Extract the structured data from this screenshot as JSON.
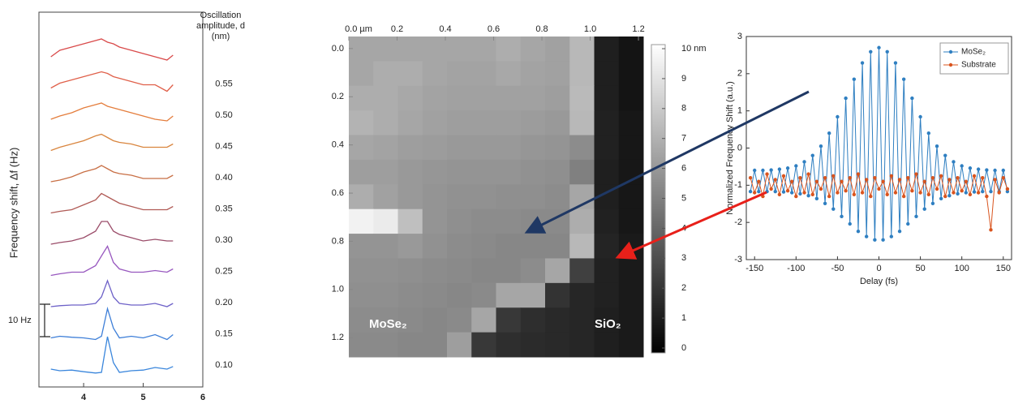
{
  "chart_data": [
    {
      "type": "ridgeline",
      "y_label": "Frequency shift, Δf (Hz)",
      "legend_title": [
        "Oscillation",
        "amplitude, d",
        "(nm)"
      ],
      "scale_bar": {
        "label": "10 Hz",
        "value": 10
      },
      "xlim": [
        3.25,
        6
      ],
      "xticks": [
        4,
        5,
        6
      ],
      "x": [
        3.45,
        3.6,
        3.8,
        4.0,
        4.2,
        4.3,
        4.4,
        4.5,
        4.6,
        4.8,
        5.0,
        5.2,
        5.4,
        5.5
      ],
      "series": [
        {
          "name": null,
          "color": "#d94a4a",
          "values": [
            0,
            2,
            3,
            4,
            5,
            5.5,
            4.5,
            4,
            3,
            2,
            1,
            0,
            -1,
            0.5
          ]
        },
        {
          "name": "0.55",
          "color": "#e0604a",
          "values": [
            0,
            1.5,
            2.5,
            3.5,
            4.5,
            5,
            4.5,
            3.5,
            3,
            2,
            1,
            1,
            -1,
            1
          ]
        },
        {
          "name": "0.50",
          "color": "#e47d3c",
          "values": [
            0,
            1,
            2,
            3.5,
            4.5,
            5,
            4,
            3.5,
            3,
            2,
            1,
            0,
            -0.5,
            1
          ]
        },
        {
          "name": "0.45",
          "color": "#d9853e",
          "values": [
            0,
            1,
            2,
            3,
            4.5,
            5,
            4,
            3,
            2.5,
            2,
            1,
            1,
            1,
            2
          ]
        },
        {
          "name": "0.40",
          "color": "#c86f45",
          "values": [
            0,
            0.5,
            1.5,
            3,
            4,
            5,
            4,
            3,
            2.5,
            2,
            1,
            1,
            1,
            2
          ]
        },
        {
          "name": "0.35",
          "color": "#b05a55",
          "values": [
            0,
            0.5,
            1,
            2.5,
            4,
            6,
            5,
            4,
            3,
            2,
            1,
            1,
            1,
            2
          ]
        },
        {
          "name": "0.30",
          "color": "#9b4d6a",
          "values": [
            0,
            0.5,
            1,
            2,
            4,
            7,
            7,
            4,
            3,
            2,
            1,
            1.5,
            1,
            1
          ]
        },
        {
          "name": "0.25",
          "color": "#9858bf",
          "values": [
            0,
            0.5,
            1,
            1,
            3,
            6,
            9,
            4,
            2,
            1,
            1,
            1.5,
            1,
            2
          ]
        },
        {
          "name": "0.20",
          "color": "#6e62c8",
          "values": [
            0,
            0.3,
            0.5,
            0.5,
            1,
            3,
            8,
            3,
            1,
            0.5,
            0.5,
            1,
            0,
            1
          ]
        },
        {
          "name": "0.15",
          "color": "#3e7fd8",
          "values": [
            0,
            0.5,
            0.2,
            0,
            -0.5,
            0.5,
            9,
            3,
            0,
            0.5,
            0,
            1,
            -0.5,
            1
          ]
        },
        {
          "name": "0.10",
          "color": "#3a86dc",
          "values": [
            0,
            -0.5,
            -0.3,
            -0.8,
            -1.2,
            -1,
            10,
            2,
            -1,
            -0.5,
            -0.3,
            0.5,
            0,
            0.8
          ]
        }
      ]
    },
    {
      "type": "heatmap",
      "xlim": [
        0,
        1.22
      ],
      "ylim": [
        -0.05,
        1.28
      ],
      "clim": [
        0,
        10
      ],
      "xticks": [
        {
          "value": 0,
          "label": "0.0 µm"
        },
        0.2,
        0.4,
        0.6,
        0.8,
        {
          "value": 1,
          "label": "1.0"
        },
        1.2
      ],
      "yticks": [
        {
          "value": 0,
          "label": "0.0"
        },
        0.2,
        0.4,
        0.6,
        0.8,
        {
          "value": 1,
          "label": "1.0"
        },
        1.2
      ],
      "cticks": [
        0,
        1,
        2,
        3,
        4,
        5,
        6,
        7,
        8,
        9,
        {
          "value": 10,
          "label": "10 nm"
        }
      ],
      "annotations": [
        "MoSe₂",
        "SiO₂"
      ],
      "z": [
        [
          6.5,
          6.5,
          6.5,
          6.5,
          6.5,
          6.5,
          6.8,
          6.5,
          6.3,
          7.2,
          1.2,
          0.8
        ],
        [
          6.5,
          6.8,
          6.8,
          6.5,
          6.4,
          6.4,
          6.6,
          6.4,
          6.3,
          7.2,
          1.2,
          0.8
        ],
        [
          6.8,
          6.8,
          6.6,
          6.4,
          6.3,
          6.3,
          6.3,
          6.3,
          6.2,
          7.3,
          1.2,
          0.8
        ],
        [
          7,
          6.8,
          6.5,
          6.3,
          6.2,
          6.2,
          6.2,
          6.1,
          6.0,
          7.2,
          1.3,
          0.9
        ],
        [
          6.5,
          6.4,
          6.2,
          6.1,
          6.0,
          6.0,
          6.0,
          5.9,
          5.8,
          5.5,
          1.3,
          0.9
        ],
        [
          6.2,
          6.2,
          6.0,
          5.9,
          5.8,
          5.8,
          5.8,
          5.7,
          5.6,
          5.0,
          1.2,
          0.9
        ],
        [
          6.8,
          6.3,
          6.0,
          5.8,
          5.7,
          5.7,
          5.6,
          5.6,
          5.5,
          6.5,
          1.2,
          0.9
        ],
        [
          9.5,
          9.2,
          7.5,
          5.8,
          5.6,
          5.5,
          5.5,
          5.4,
          5.4,
          6.8,
          1.3,
          0.9
        ],
        [
          5.8,
          5.8,
          6.0,
          5.7,
          5.5,
          5.4,
          5.3,
          5.3,
          5.3,
          7.2,
          1.4,
          1.0
        ],
        [
          5.7,
          5.7,
          5.6,
          5.5,
          5.4,
          5.3,
          5.3,
          5.5,
          6.5,
          2.5,
          1.3,
          1.0
        ],
        [
          5.6,
          5.6,
          5.5,
          5.4,
          5.3,
          5.4,
          6.5,
          6.5,
          2.0,
          1.5,
          1.3,
          1.0
        ],
        [
          5.5,
          5.5,
          5.4,
          5.3,
          5.4,
          6.5,
          2.2,
          1.8,
          1.6,
          1.5,
          1.2,
          1.0
        ],
        [
          5.4,
          5.4,
          5.3,
          5.3,
          6.2,
          2.2,
          1.8,
          1.7,
          1.6,
          1.5,
          1.2,
          1.0
        ]
      ]
    },
    {
      "type": "line",
      "x_label": "Delay (fs)",
      "y_label": "Normalized Frequency Shift (a.u.)",
      "xlim": [
        -160,
        160
      ],
      "ylim": [
        -3,
        3
      ],
      "xticks": [
        -150,
        -100,
        -50,
        0,
        50,
        100,
        150
      ],
      "yticks": [
        -3,
        -2,
        -1,
        0,
        1,
        2,
        3
      ],
      "markers": true,
      "legend": "upper right",
      "x": [
        -155,
        -150,
        -145,
        -140,
        -135,
        -130,
        -125,
        -120,
        -115,
        -110,
        -105,
        -100,
        -95,
        -90,
        -85,
        -80,
        -75,
        -70,
        -65,
        -60,
        -55,
        -50,
        -45,
        -40,
        -35,
        -30,
        -25,
        -20,
        -15,
        -10,
        -5,
        0,
        5,
        10,
        15,
        20,
        25,
        30,
        35,
        40,
        45,
        50,
        55,
        60,
        65,
        70,
        75,
        80,
        85,
        90,
        95,
        100,
        105,
        110,
        115,
        120,
        125,
        130,
        135,
        140,
        145,
        150,
        155
      ],
      "series": [
        {
          "name": "MoSe₂",
          "color": "#2f7fc1",
          "values": [
            -1.17,
            -0.6,
            -1.17,
            -0.6,
            -1.17,
            -0.59,
            -1.17,
            -0.57,
            -1.18,
            -0.54,
            -1.2,
            -0.48,
            -1.23,
            -0.37,
            -1.28,
            -0.2,
            -1.36,
            0.05,
            -1.49,
            0.4,
            -1.64,
            0.84,
            -1.84,
            1.34,
            -2.04,
            1.85,
            -2.24,
            2.29,
            -2.38,
            2.59,
            -2.47,
            2.7,
            -2.47,
            2.59,
            -2.38,
            2.29,
            -2.24,
            1.85,
            -2.04,
            1.34,
            -1.84,
            0.84,
            -1.64,
            0.4,
            -1.49,
            0.05,
            -1.36,
            -0.2,
            -1.28,
            -0.37,
            -1.23,
            -0.48,
            -1.2,
            -0.54,
            -1.18,
            -0.57,
            -1.17,
            -0.59,
            -1.17,
            -0.6,
            -1.17,
            -0.6,
            -1.17
          ]
        },
        {
          "name": "Substrate",
          "color": "#d9541e",
          "values": [
            -0.8,
            -1.2,
            -0.9,
            -1.3,
            -0.7,
            -1.1,
            -0.85,
            -1.25,
            -0.75,
            -1.15,
            -0.9,
            -1.3,
            -0.8,
            -1.2,
            -0.7,
            -1.25,
            -0.9,
            -1.1,
            -0.8,
            -1.3,
            -0.75,
            -1.2,
            -0.9,
            -1.15,
            -0.8,
            -1.25,
            -0.7,
            -1.2,
            -0.85,
            -1.3,
            -0.8,
            -1.1,
            -0.9,
            -1.25,
            -0.75,
            -1.2,
            -0.85,
            -1.3,
            -0.8,
            -1.15,
            -0.7,
            -1.2,
            -0.9,
            -1.25,
            -0.8,
            -1.1,
            -0.75,
            -1.3,
            -0.85,
            -1.2,
            -0.8,
            -1.15,
            -0.9,
            -1.25,
            -0.75,
            -1.2,
            -0.8,
            -1.3,
            -2.2,
            -0.85,
            -1.2,
            -0.8,
            -1.1
          ]
        }
      ]
    }
  ]
}
